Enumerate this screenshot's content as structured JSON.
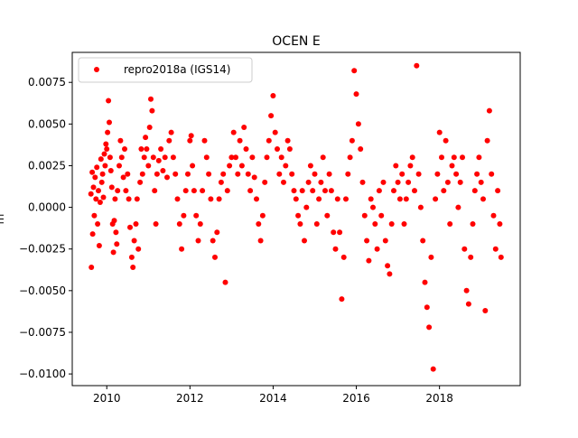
{
  "chart_data": {
    "type": "scatter",
    "title": "OCEN E",
    "xlabel": "",
    "ylabel": "m",
    "xlim": [
      2009.17,
      2019.94
    ],
    "ylim": [
      -0.0107,
      0.0093
    ],
    "x_ticks": [
      2010,
      2012,
      2014,
      2016,
      2018
    ],
    "x_tick_labels": [
      "2010",
      "2012",
      "2014",
      "2016",
      "2018"
    ],
    "y_ticks": [
      0.0075,
      0.005,
      0.0025,
      0.0,
      -0.0025,
      -0.005,
      -0.0075,
      -0.01
    ],
    "y_tick_labels": [
      "0.0075",
      "0.0050",
      "0.0025",
      "0.0000",
      "−0.0025",
      "−0.0050",
      "−0.0075",
      "−0.0100"
    ],
    "grid": false,
    "legend": "top-left",
    "series": [
      {
        "name": "repro2018a (IGS14)",
        "color": "#ff0000",
        "marker": "circle",
        "points": [
          [
            2009.62,
            0.0008
          ],
          [
            2009.63,
            -0.0036
          ],
          [
            2009.65,
            0.0021
          ],
          [
            2009.66,
            -0.0016
          ],
          [
            2009.68,
            0.0012
          ],
          [
            2009.7,
            -0.0005
          ],
          [
            2009.72,
            0.0018
          ],
          [
            2009.74,
            0.0005
          ],
          [
            2009.76,
            0.0024
          ],
          [
            2009.78,
            -0.001
          ],
          [
            2009.8,
            0.001
          ],
          [
            2009.82,
            -0.0023
          ],
          [
            2009.84,
            0.0003
          ],
          [
            2009.86,
            0.0029
          ],
          [
            2009.88,
            0.0015
          ],
          [
            2009.9,
            0.002
          ],
          [
            2009.92,
            0.0006
          ],
          [
            2009.94,
            0.0032
          ],
          [
            2009.96,
            0.0025
          ],
          [
            2009.98,
            0.0038
          ],
          [
            2010.0,
            0.0035
          ],
          [
            2010.02,
            0.0045
          ],
          [
            2010.04,
            0.0064
          ],
          [
            2010.06,
            0.0051
          ],
          [
            2010.08,
            0.003
          ],
          [
            2010.1,
            0.0022
          ],
          [
            2010.12,
            0.0012
          ],
          [
            2010.14,
            -0.001
          ],
          [
            2010.16,
            -0.0027
          ],
          [
            2010.18,
            -0.0008
          ],
          [
            2010.2,
            0.0005
          ],
          [
            2010.22,
            -0.0015
          ],
          [
            2010.24,
            -0.0022
          ],
          [
            2010.26,
            0.001
          ],
          [
            2010.3,
            0.0025
          ],
          [
            2010.33,
            0.004
          ],
          [
            2010.36,
            0.003
          ],
          [
            2010.4,
            0.0018
          ],
          [
            2010.43,
            0.0035
          ],
          [
            2010.46,
            0.001
          ],
          [
            2010.5,
            0.002
          ],
          [
            2010.53,
            0.0005
          ],
          [
            2010.56,
            -0.0012
          ],
          [
            2010.6,
            -0.003
          ],
          [
            2010.63,
            -0.0036
          ],
          [
            2010.66,
            -0.002
          ],
          [
            2010.7,
            -0.001
          ],
          [
            2010.73,
            0.0005
          ],
          [
            2010.76,
            -0.0025
          ],
          [
            2010.8,
            0.0015
          ],
          [
            2010.83,
            0.0035
          ],
          [
            2010.86,
            0.002
          ],
          [
            2010.9,
            0.003
          ],
          [
            2010.93,
            0.0042
          ],
          [
            2010.96,
            0.0035
          ],
          [
            2011.0,
            0.0025
          ],
          [
            2011.03,
            0.0048
          ],
          [
            2011.06,
            0.0065
          ],
          [
            2011.09,
            0.0058
          ],
          [
            2011.12,
            0.003
          ],
          [
            2011.15,
            0.001
          ],
          [
            2011.18,
            -0.001
          ],
          [
            2011.21,
            0.002
          ],
          [
            2011.25,
            0.0028
          ],
          [
            2011.3,
            0.0035
          ],
          [
            2011.35,
            0.0022
          ],
          [
            2011.4,
            0.003
          ],
          [
            2011.45,
            0.0018
          ],
          [
            2011.5,
            0.004
          ],
          [
            2011.55,
            0.0045
          ],
          [
            2011.6,
            0.003
          ],
          [
            2011.65,
            0.002
          ],
          [
            2011.7,
            0.0005
          ],
          [
            2011.75,
            -0.001
          ],
          [
            2011.8,
            -0.0025
          ],
          [
            2011.85,
            -0.0005
          ],
          [
            2011.9,
            0.001
          ],
          [
            2011.95,
            0.002
          ],
          [
            2012.0,
            0.004
          ],
          [
            2012.03,
            0.0043
          ],
          [
            2012.06,
            0.0025
          ],
          [
            2012.1,
            0.001
          ],
          [
            2012.15,
            -0.0005
          ],
          [
            2012.2,
            -0.002
          ],
          [
            2012.25,
            -0.001
          ],
          [
            2012.3,
            0.001
          ],
          [
            2012.35,
            0.004
          ],
          [
            2012.4,
            0.003
          ],
          [
            2012.45,
            0.002
          ],
          [
            2012.5,
            0.0005
          ],
          [
            2012.55,
            -0.002
          ],
          [
            2012.6,
            -0.003
          ],
          [
            2012.65,
            -0.0015
          ],
          [
            2012.7,
            0.0005
          ],
          [
            2012.75,
            0.0015
          ],
          [
            2012.8,
            0.002
          ],
          [
            2012.85,
            -0.0045
          ],
          [
            2012.9,
            0.001
          ],
          [
            2012.95,
            0.0025
          ],
          [
            2013.0,
            0.003
          ],
          [
            2013.05,
            0.0045
          ],
          [
            2013.1,
            0.003
          ],
          [
            2013.15,
            0.002
          ],
          [
            2013.2,
            0.004
          ],
          [
            2013.25,
            0.0025
          ],
          [
            2013.3,
            0.0048
          ],
          [
            2013.35,
            0.0035
          ],
          [
            2013.4,
            0.002
          ],
          [
            2013.45,
            0.001
          ],
          [
            2013.5,
            0.003
          ],
          [
            2013.55,
            0.0018
          ],
          [
            2013.6,
            0.0005
          ],
          [
            2013.65,
            -0.001
          ],
          [
            2013.7,
            -0.002
          ],
          [
            2013.75,
            -0.0005
          ],
          [
            2013.8,
            0.0015
          ],
          [
            2013.85,
            0.003
          ],
          [
            2013.9,
            0.004
          ],
          [
            2013.95,
            0.0055
          ],
          [
            2014.0,
            0.0067
          ],
          [
            2014.05,
            0.0045
          ],
          [
            2014.1,
            0.0035
          ],
          [
            2014.15,
            0.002
          ],
          [
            2014.2,
            0.003
          ],
          [
            2014.25,
            0.0015
          ],
          [
            2014.3,
            0.0025
          ],
          [
            2014.35,
            0.004
          ],
          [
            2014.4,
            0.0035
          ],
          [
            2014.45,
            0.002
          ],
          [
            2014.5,
            0.001
          ],
          [
            2014.55,
            0.0005
          ],
          [
            2014.6,
            -0.0005
          ],
          [
            2014.65,
            -0.001
          ],
          [
            2014.7,
            0.001
          ],
          [
            2014.75,
            -0.002
          ],
          [
            2014.8,
            0.0
          ],
          [
            2014.85,
            0.0015
          ],
          [
            2014.9,
            0.0025
          ],
          [
            2014.95,
            0.001
          ],
          [
            2015.0,
            0.002
          ],
          [
            2015.05,
            -0.001
          ],
          [
            2015.1,
            0.0005
          ],
          [
            2015.15,
            0.0015
          ],
          [
            2015.2,
            0.003
          ],
          [
            2015.25,
            0.001
          ],
          [
            2015.3,
            -0.0005
          ],
          [
            2015.35,
            0.002
          ],
          [
            2015.4,
            0.001
          ],
          [
            2015.45,
            -0.0015
          ],
          [
            2015.5,
            -0.0025
          ],
          [
            2015.55,
            0.0005
          ],
          [
            2015.6,
            -0.0015
          ],
          [
            2015.65,
            -0.0055
          ],
          [
            2015.7,
            -0.003
          ],
          [
            2015.75,
            0.0005
          ],
          [
            2015.8,
            0.002
          ],
          [
            2015.85,
            0.003
          ],
          [
            2015.9,
            0.004
          ],
          [
            2015.95,
            0.0082
          ],
          [
            2016.0,
            0.0068
          ],
          [
            2016.05,
            0.005
          ],
          [
            2016.1,
            0.0035
          ],
          [
            2016.15,
            0.0015
          ],
          [
            2016.2,
            -0.0005
          ],
          [
            2016.25,
            -0.002
          ],
          [
            2016.3,
            -0.0032
          ],
          [
            2016.35,
            0.0005
          ],
          [
            2016.4,
            0.0
          ],
          [
            2016.45,
            -0.001
          ],
          [
            2016.5,
            -0.0025
          ],
          [
            2016.55,
            0.001
          ],
          [
            2016.6,
            -0.0005
          ],
          [
            2016.65,
            0.0015
          ],
          [
            2016.7,
            -0.002
          ],
          [
            2016.75,
            -0.0035
          ],
          [
            2016.8,
            -0.004
          ],
          [
            2016.85,
            -0.001
          ],
          [
            2016.9,
            0.001
          ],
          [
            2016.95,
            0.0025
          ],
          [
            2017.0,
            0.0015
          ],
          [
            2017.05,
            0.0005
          ],
          [
            2017.1,
            0.002
          ],
          [
            2017.15,
            -0.001
          ],
          [
            2017.2,
            0.0005
          ],
          [
            2017.25,
            0.0015
          ],
          [
            2017.3,
            0.0025
          ],
          [
            2017.35,
            0.003
          ],
          [
            2017.4,
            0.001
          ],
          [
            2017.45,
            0.0085
          ],
          [
            2017.5,
            0.002
          ],
          [
            2017.55,
            0.0
          ],
          [
            2017.6,
            -0.002
          ],
          [
            2017.65,
            -0.0045
          ],
          [
            2017.7,
            -0.006
          ],
          [
            2017.75,
            -0.0072
          ],
          [
            2017.8,
            -0.003
          ],
          [
            2017.85,
            -0.0097
          ],
          [
            2017.9,
            0.0005
          ],
          [
            2017.95,
            0.002
          ],
          [
            2018.0,
            0.0045
          ],
          [
            2018.05,
            0.003
          ],
          [
            2018.1,
            0.001
          ],
          [
            2018.15,
            0.004
          ],
          [
            2018.2,
            0.0015
          ],
          [
            2018.25,
            -0.001
          ],
          [
            2018.3,
            0.0025
          ],
          [
            2018.35,
            0.003
          ],
          [
            2018.4,
            0.002
          ],
          [
            2018.45,
            0.0
          ],
          [
            2018.5,
            0.0015
          ],
          [
            2018.55,
            0.003
          ],
          [
            2018.6,
            -0.0025
          ],
          [
            2018.65,
            -0.005
          ],
          [
            2018.7,
            -0.0058
          ],
          [
            2018.75,
            -0.003
          ],
          [
            2018.8,
            -0.001
          ],
          [
            2018.85,
            0.001
          ],
          [
            2018.9,
            0.002
          ],
          [
            2018.95,
            0.003
          ],
          [
            2019.0,
            0.0015
          ],
          [
            2019.05,
            0.0005
          ],
          [
            2019.1,
            -0.0062
          ],
          [
            2019.15,
            0.004
          ],
          [
            2019.2,
            0.0058
          ],
          [
            2019.25,
            0.002
          ],
          [
            2019.3,
            -0.0005
          ],
          [
            2019.35,
            -0.0025
          ],
          [
            2019.4,
            0.001
          ],
          [
            2019.45,
            -0.001
          ],
          [
            2019.48,
            -0.003
          ]
        ]
      }
    ]
  }
}
